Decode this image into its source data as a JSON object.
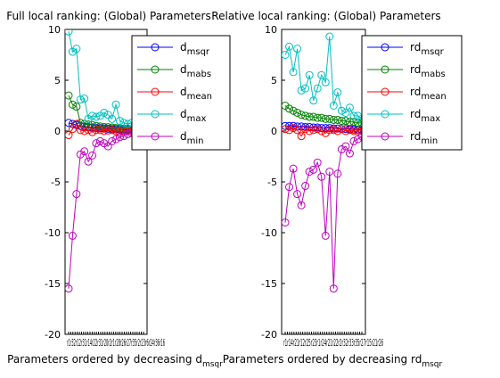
{
  "chart_data": [
    {
      "type": "line",
      "title": "Full local ranking: (Global) Parameters",
      "xlabel": "Parameters ordered by decreasing d",
      "xlabel_sub": "msqr",
      "xtick_text": "r1r32r12r31r14r22r31r20r2r1r28r26r27r35r2r23r6r24r36r16",
      "ylim": [
        -20,
        10
      ],
      "yticks": [
        10,
        5,
        0,
        -5,
        -10,
        -15,
        -20
      ],
      "xlim": [
        1,
        36
      ],
      "grid": false,
      "legend_position": "top-right",
      "series": [
        {
          "name": "d",
          "sub": "msqr",
          "color": "#0000ff",
          "x": [
            1,
            2,
            3,
            4,
            5,
            6,
            7,
            8,
            9,
            10,
            11,
            12,
            13,
            14,
            15,
            16,
            17,
            18,
            19,
            20
          ],
          "y": [
            0.8,
            0.7,
            0.6,
            0.5,
            0.45,
            0.4,
            0.35,
            0.3,
            0.28,
            0.25,
            0.22,
            0.2,
            0.18,
            0.16,
            0.14,
            0.12,
            0.1,
            0.08,
            0.06,
            0.05
          ]
        },
        {
          "name": "d",
          "sub": "mabs",
          "color": "#008000",
          "x": [
            1,
            2,
            3,
            4,
            5,
            6,
            7,
            8,
            9,
            10,
            11,
            12,
            13,
            14,
            15,
            16,
            17,
            18,
            19,
            20
          ],
          "y": [
            3.5,
            2.6,
            2.4,
            0.8,
            0.7,
            0.65,
            0.6,
            0.5,
            0.45,
            0.4,
            0.38,
            0.35,
            0.3,
            0.28,
            0.25,
            0.22,
            0.2,
            0.18,
            0.15,
            0.12
          ]
        },
        {
          "name": "d",
          "sub": "mean",
          "color": "#ff0000",
          "x": [
            1,
            2,
            3,
            4,
            5,
            6,
            7,
            8,
            9,
            10,
            11,
            12,
            13,
            14,
            15,
            16,
            17,
            18,
            19,
            20
          ],
          "y": [
            -0.4,
            0.2,
            0.7,
            0.1,
            0.0,
            0.1,
            -0.1,
            0.1,
            0.1,
            0.0,
            0.05,
            0.1,
            0.0,
            -0.1,
            0.0,
            0.05,
            0.0,
            0.0,
            -0.05,
            0.0
          ]
        },
        {
          "name": "d",
          "sub": "max",
          "color": "#00bfbf",
          "x": [
            1,
            2,
            3,
            4,
            5,
            6,
            7,
            8,
            9,
            10,
            11,
            12,
            13,
            14,
            15,
            16,
            17,
            18,
            19,
            20
          ],
          "y": [
            9.8,
            7.8,
            8.1,
            3.1,
            3.2,
            1.2,
            1.5,
            1.4,
            1.5,
            1.8,
            1.6,
            1.2,
            2.6,
            1.0,
            0.8,
            0.7,
            0.8,
            0.9,
            0.7,
            0.6
          ]
        },
        {
          "name": "d",
          "sub": "min",
          "color": "#bf00bf",
          "x": [
            1,
            2,
            3,
            4,
            5,
            6,
            7,
            8,
            9,
            10,
            11,
            12,
            13,
            14,
            15,
            16,
            17,
            18,
            19,
            20
          ],
          "y": [
            -15.5,
            -10.3,
            -6.2,
            -2.3,
            -2.0,
            -3.0,
            -2.4,
            -1.2,
            -1.0,
            -1.2,
            -1.5,
            -1.0,
            -0.8,
            -0.6,
            -0.5,
            -0.3,
            -0.2,
            -0.2,
            -0.1,
            -0.1
          ]
        }
      ]
    },
    {
      "type": "line",
      "title": "Relative local ranking: (Global) Parameters",
      "xlabel": "Parameters ordered by decreasing rd",
      "xlabel_sub": "msqr",
      "xtick_text": "r1r14r21r12r25r23r1r24r21r22r2r32r33r35r27r15r21r26",
      "ylim": [
        -20,
        10
      ],
      "yticks": [
        10,
        5,
        0,
        -5,
        -10,
        -15,
        -20
      ],
      "xlim": [
        1,
        36
      ],
      "grid": false,
      "legend_position": "top-right",
      "series": [
        {
          "name": "rd",
          "sub": "msqr",
          "color": "#0000ff",
          "x": [
            1,
            2,
            3,
            4,
            5,
            6,
            7,
            8,
            9,
            10,
            11,
            12,
            13,
            14,
            15,
            16,
            17,
            18,
            19,
            20
          ],
          "y": [
            0.5,
            0.5,
            0.5,
            0.45,
            0.45,
            0.4,
            0.4,
            0.35,
            0.35,
            0.3,
            0.3,
            0.3,
            0.25,
            0.25,
            0.2,
            0.2,
            0.2,
            0.15,
            0.15,
            0.1
          ]
        },
        {
          "name": "rd",
          "sub": "mabs",
          "color": "#008000",
          "x": [
            1,
            2,
            3,
            4,
            5,
            6,
            7,
            8,
            9,
            10,
            11,
            12,
            13,
            14,
            15,
            16,
            17,
            18,
            19,
            20
          ],
          "y": [
            2.5,
            2.2,
            2.0,
            1.8,
            1.6,
            1.5,
            1.4,
            1.4,
            1.3,
            1.3,
            1.2,
            1.2,
            1.1,
            1.1,
            1.0,
            1.0,
            0.9,
            0.9,
            0.8,
            0.8
          ]
        },
        {
          "name": "rd",
          "sub": "mean",
          "color": "#ff0000",
          "x": [
            1,
            2,
            3,
            4,
            5,
            6,
            7,
            8,
            9,
            10,
            11,
            12,
            13,
            14,
            15,
            16,
            17,
            18,
            19,
            20
          ],
          "y": [
            0.2,
            0.1,
            0.3,
            0.1,
            -0.5,
            0.2,
            0.0,
            0.1,
            0.2,
            0.0,
            -0.2,
            0.1,
            0.1,
            0.0,
            0.2,
            0.0,
            0.1,
            0.0,
            0.0,
            0.0
          ]
        },
        {
          "name": "rd",
          "sub": "max",
          "color": "#00bfbf",
          "x": [
            1,
            2,
            3,
            4,
            5,
            6,
            7,
            8,
            9,
            10,
            11,
            12,
            13,
            14,
            15,
            16,
            17,
            18,
            19,
            20
          ],
          "y": [
            7.5,
            8.3,
            5.8,
            8.1,
            4.0,
            4.2,
            5.5,
            3.0,
            4.2,
            5.5,
            4.8,
            9.3,
            2.5,
            3.8,
            2.0,
            1.8,
            2.3,
            1.5,
            1.5,
            1.2
          ]
        },
        {
          "name": "rd",
          "sub": "min",
          "color": "#bf00bf",
          "x": [
            1,
            2,
            3,
            4,
            5,
            6,
            7,
            8,
            9,
            10,
            11,
            12,
            13,
            14,
            15,
            16,
            17,
            18,
            19,
            20
          ],
          "y": [
            -9.0,
            -5.5,
            -3.7,
            -6.2,
            -7.3,
            -5.4,
            -4.0,
            -3.8,
            -3.1,
            -4.5,
            -10.3,
            -4.0,
            -15.5,
            -4.2,
            -1.8,
            -1.5,
            -2.2,
            -1.0,
            -0.8,
            -0.5
          ]
        }
      ]
    }
  ]
}
